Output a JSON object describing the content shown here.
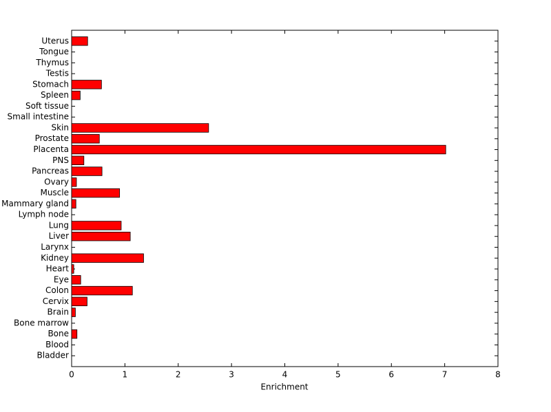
{
  "chart_data": {
    "type": "barh",
    "categories": [
      "Bladder",
      "Blood",
      "Bone",
      "Bone marrow",
      "Brain",
      "Cervix",
      "Colon",
      "Eye",
      "Heart",
      "Kidney",
      "Larynx",
      "Liver",
      "Lung",
      "Lymph node",
      "Mammary gland",
      "Muscle",
      "Ovary",
      "Pancreas",
      "PNS",
      "Placenta",
      "Prostate",
      "Skin",
      "Small intestine",
      "Soft tissue",
      "Spleen",
      "Stomach",
      "Testis",
      "Thymus",
      "Tongue",
      "Uterus"
    ],
    "values": [
      0,
      0,
      0.1,
      0,
      0.07,
      0.29,
      1.14,
      0.17,
      0.04,
      1.35,
      0,
      1.1,
      0.93,
      0,
      0.08,
      0.9,
      0.09,
      0.57,
      0.23,
      7.02,
      0.52,
      2.57,
      0,
      0,
      0.16,
      0.56,
      0,
      0,
      0,
      0.3
    ],
    "color": "#ff0000",
    "xlabel": "Enrichment",
    "xlim": [
      0,
      8
    ],
    "xticks": [
      0,
      1,
      2,
      3,
      4,
      5,
      6,
      7,
      8
    ]
  }
}
